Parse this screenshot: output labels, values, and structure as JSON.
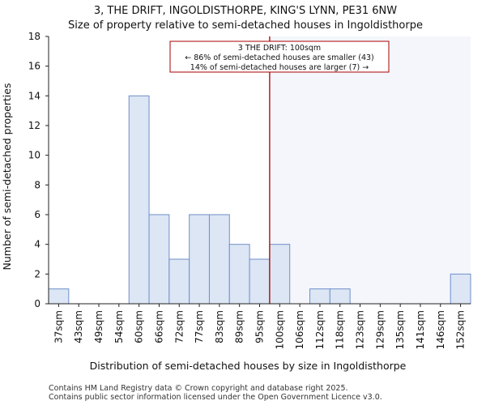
{
  "chart_data": {
    "type": "bar",
    "title": "3, THE DRIFT, INGOLDISTHORPE, KING'S LYNN, PE31 6NW",
    "subtitle": "Size of property relative to semi-detached houses in Ingoldisthorpe",
    "xlabel": "Distribution of semi-detached houses by size in Ingoldisthorpe",
    "ylabel": "Number of semi-detached properties",
    "ylim": [
      0,
      18
    ],
    "yticks": [
      0,
      2,
      4,
      6,
      8,
      10,
      12,
      14,
      16,
      18
    ],
    "categories": [
      "37sqm",
      "43sqm",
      "49sqm",
      "54sqm",
      "60sqm",
      "66sqm",
      "72sqm",
      "77sqm",
      "83sqm",
      "89sqm",
      "95sqm",
      "100sqm",
      "106sqm",
      "112sqm",
      "118sqm",
      "123sqm",
      "129sqm",
      "135sqm",
      "141sqm",
      "146sqm",
      "152sqm"
    ],
    "values": [
      1,
      0,
      0,
      0,
      14,
      6,
      3,
      6,
      6,
      4,
      3,
      4,
      0,
      1,
      1,
      0,
      0,
      0,
      0,
      0,
      2
    ],
    "marker_index": 11,
    "annotation": {
      "lines": [
        "3 THE DRIFT: 100sqm",
        "← 86% of semi-detached houses are smaller (43)",
        "14% of semi-detached houses are larger (7) →"
      ]
    },
    "colors": {
      "bar_fill": "#dce6f4",
      "bar_stroke": "#6f8fc9",
      "marker": "#aa0000",
      "highlight": "#f4f6fc"
    }
  },
  "footer": {
    "line1": "Contains HM Land Registry data © Crown copyright and database right 2025.",
    "line2": "Contains public sector information licensed under the Open Government Licence v3.0."
  }
}
